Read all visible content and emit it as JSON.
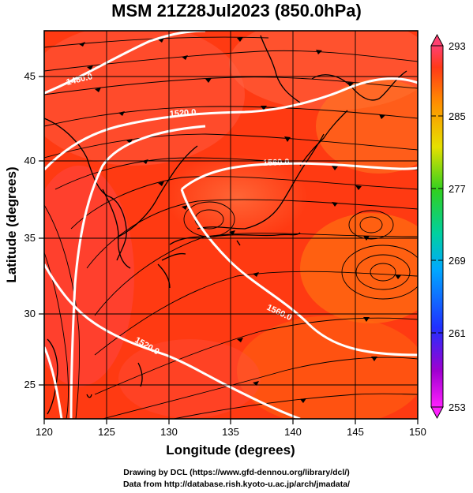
{
  "title": "MSM 21Z28Jul2023 (850.0hPa)",
  "x_axis": {
    "label": "Longitude (degrees)",
    "ticks": [
      "120",
      "125",
      "130",
      "135",
      "140",
      "145",
      "150"
    ]
  },
  "y_axis": {
    "label": "Latitude  (degrees)",
    "ticks": [
      "25",
      "30",
      "35",
      "40",
      "45"
    ]
  },
  "colorbar": {
    "labels": [
      "293",
      "285",
      "277",
      "269",
      "261",
      "253"
    ],
    "stops": [
      "#ff4070",
      "#ff3a1a",
      "#ff9a00",
      "#ffe600",
      "#5cdc00",
      "#00cc88",
      "#00aaff",
      "#2040ff",
      "#6a00d0",
      "#ff20ff"
    ]
  },
  "contours": [
    "1480.0",
    "1520.0",
    "1560.0",
    "1560.0",
    "1520.0"
  ],
  "credits": [
    "Drawing by DCL (https://www.gfd-dennou.org/library/dcl/)",
    "Data from http://database.rish.kyoto-u.ac.jp/arch/jmadata/"
  ],
  "chart_data": {
    "type": "heatmap",
    "title": "MSM 21Z28Jul2023 (850.0hPa)",
    "xlabel": "Longitude (degrees)",
    "ylabel": "Latitude  (degrees)",
    "xlim": [
      120,
      150
    ],
    "ylim": [
      22.4,
      47.6
    ],
    "colorbar_range": [
      253,
      293
    ]
  }
}
